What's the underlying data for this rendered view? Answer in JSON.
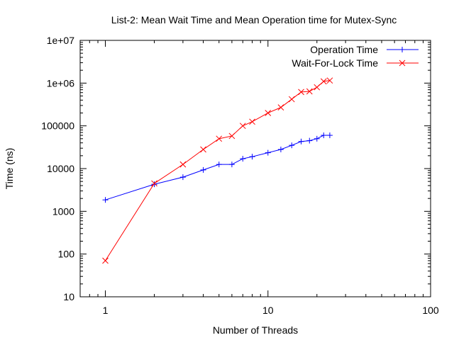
{
  "chart_data": {
    "type": "line",
    "title": "List-2: Mean Wait Time and Mean Operation time for Mutex-Sync",
    "xlabel": "Number of Threads",
    "ylabel": "Time (ns)",
    "xscale": "log",
    "yscale": "log",
    "xlim": [
      0.7,
      100
    ],
    "ylim": [
      10,
      10000000
    ],
    "x_ticks": [
      {
        "value": 1,
        "label": "1"
      },
      {
        "value": 10,
        "label": "10"
      },
      {
        "value": 100,
        "label": "100"
      }
    ],
    "y_ticks": [
      {
        "value": 10,
        "label": "10"
      },
      {
        "value": 100,
        "label": "100"
      },
      {
        "value": 1000,
        "label": "1000"
      },
      {
        "value": 10000,
        "label": "10000"
      },
      {
        "value": 100000,
        "label": "100000"
      },
      {
        "value": 1000000,
        "label": "1e+06"
      },
      {
        "value": 10000000,
        "label": "1e+07"
      }
    ],
    "grid": false,
    "legend_position": "top-right",
    "series": [
      {
        "name": "Operation Time",
        "color": "#0000ff",
        "marker": "plus",
        "x": [
          1,
          2,
          3,
          4,
          5,
          6,
          7,
          8,
          10,
          12,
          14,
          16,
          18,
          20,
          22,
          24
        ],
        "y": [
          1850,
          4300,
          6300,
          9300,
          12500,
          12500,
          17000,
          19000,
          23500,
          28000,
          35000,
          43000,
          45000,
          50000,
          60000,
          60000
        ]
      },
      {
        "name": "Wait-For-Lock Time",
        "color": "#ff0000",
        "marker": "cross",
        "x": [
          1,
          2,
          3,
          4,
          5,
          6,
          7,
          8,
          10,
          12,
          14,
          16,
          18,
          20,
          22,
          24
        ],
        "y": [
          70,
          4500,
          12500,
          28000,
          50000,
          58000,
          100000,
          125000,
          200000,
          270000,
          420000,
          620000,
          640000,
          800000,
          1100000,
          1150000
        ]
      }
    ]
  }
}
